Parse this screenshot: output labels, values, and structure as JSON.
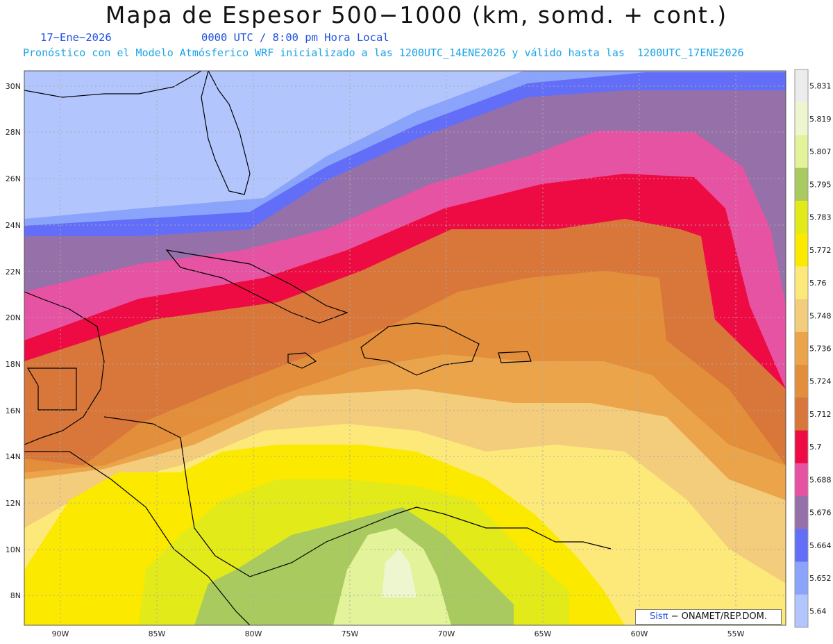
{
  "header": {
    "title": "Mapa de Espesor 500−1000 (km, somd. + cont.)",
    "date": "17−Ene−2026",
    "time": "0000 UTC / 8:00 pm Hora Local",
    "forecast": "Pronóstico con el Modelo Atmósferico WRF inicializado a las 1200UTC_14ENE2026 y válido hasta las  1200UTC_17ENE2026"
  },
  "map": {
    "lat_labels": [
      "30N",
      "28N",
      "26N",
      "24N",
      "22N",
      "20N",
      "18N",
      "16N",
      "14N",
      "12N",
      "10N",
      "8N"
    ],
    "lon_labels": [
      "90W",
      "85W",
      "80W",
      "75W",
      "70W",
      "65W",
      "60W",
      "55W"
    ]
  },
  "colorbar": {
    "labels": [
      "5.831",
      "5.819",
      "5.807",
      "5.795",
      "5.783",
      "5.772",
      "5.76",
      "5.748",
      "5.736",
      "5.724",
      "5.712",
      "5.7",
      "5.688",
      "5.676",
      "5.664",
      "5.652",
      "5.64"
    ],
    "colors": [
      "#ececec",
      "#eef6d0",
      "#e3f39a",
      "#a8ca5e",
      "#e2ea1a",
      "#fbe900",
      "#fde97a",
      "#f3cc7c",
      "#eba44a",
      "#e38e3a",
      "#d9773a",
      "#ee0a42",
      "#e653a3",
      "#9670a8",
      "#636ef8",
      "#8aa4fc",
      "#b3c5fd"
    ]
  },
  "credit": {
    "brand": "Sisπ",
    "org": "− ONAMET/REP.DOM."
  }
}
